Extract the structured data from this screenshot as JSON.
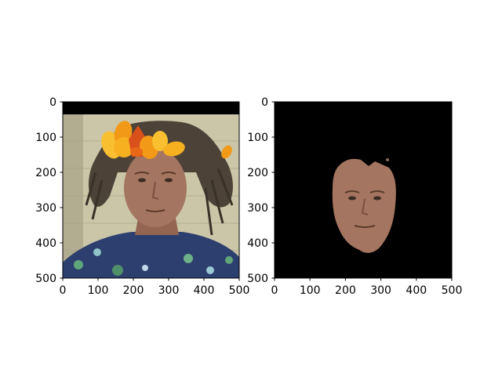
{
  "chart_data": [
    {
      "type": "image",
      "title": "",
      "xlabel": "",
      "ylabel": "",
      "xlim": [
        0,
        500
      ],
      "ylim": [
        500,
        0
      ],
      "xticks": [
        0,
        100,
        200,
        300,
        400,
        500
      ],
      "yticks": [
        0,
        100,
        200,
        300,
        400,
        500
      ],
      "xtick_labels": [
        "0",
        "100",
        "200",
        "300",
        "400",
        "500"
      ],
      "ytick_labels": [
        "0",
        "100",
        "200",
        "300",
        "400",
        "500"
      ],
      "content": "photo of a man's face with autumn-leaf crown; black band across top"
    },
    {
      "type": "image",
      "title": "",
      "xlabel": "",
      "ylabel": "",
      "xlim": [
        0,
        500
      ],
      "ylim": [
        500,
        0
      ],
      "xticks": [
        0,
        100,
        200,
        300,
        400,
        500
      ],
      "yticks": [
        0,
        100,
        200,
        300,
        400,
        500
      ],
      "xtick_labels": [
        "0",
        "100",
        "200",
        "300",
        "400",
        "500"
      ],
      "ytick_labels": [
        "0",
        "100",
        "200",
        "300",
        "400",
        "500"
      ],
      "content": "segmented face region on black background"
    }
  ],
  "colors": {
    "background": "#000000",
    "wall": "#cbc6a8",
    "skin": "#a47560",
    "hair": "#4c4237",
    "shirt": "#2d3f6e",
    "leaf_orange": "#f29a18",
    "leaf_red": "#d9501a",
    "leaf_yellow": "#f8c030"
  }
}
